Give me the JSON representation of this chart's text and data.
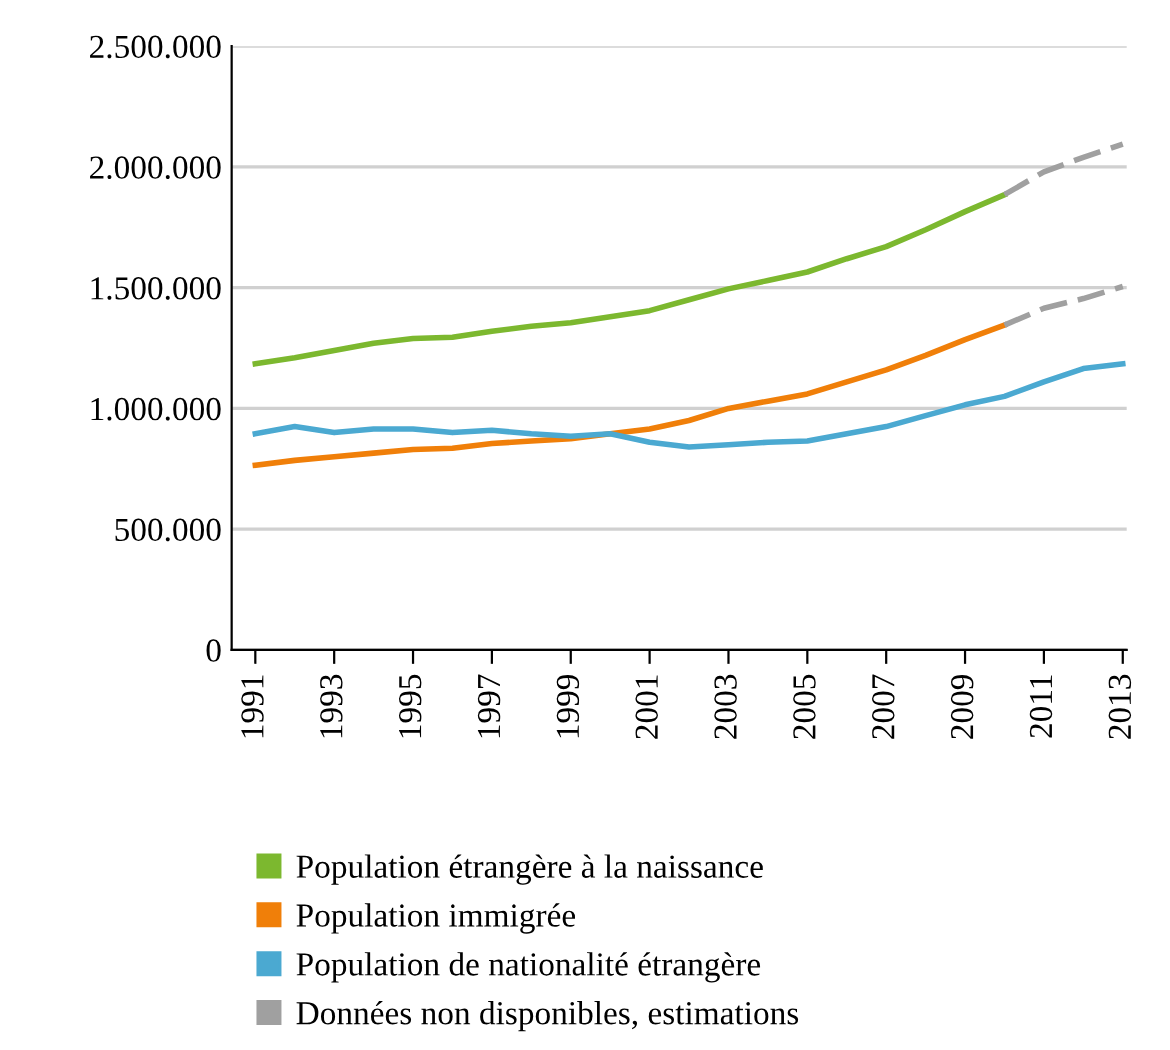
{
  "chart_data": {
    "type": "line",
    "xlim": [
      1990.4,
      2013.1
    ],
    "xticks": [
      1991,
      1993,
      1995,
      1997,
      1999,
      2001,
      2003,
      2005,
      2007,
      2009,
      2011,
      2013
    ],
    "ylim": [
      0,
      2500000
    ],
    "yticks": [
      {
        "value": 0,
        "label": "0"
      },
      {
        "value": 500000,
        "label": "500.000"
      },
      {
        "value": 1000000,
        "label": "1.000.000"
      },
      {
        "value": 1500000,
        "label": "1.500.000"
      },
      {
        "value": 2000000,
        "label": "2.000.000"
      },
      {
        "value": 2500000,
        "label": "2.500.000"
      }
    ],
    "grid": "y",
    "legend": "bottom",
    "marker": "none",
    "series": [
      {
        "name": "Population étrangère à la naissance",
        "color": "#7cb82f",
        "line_style": "solid",
        "x": [
          1991,
          1992,
          1993,
          1994,
          1995,
          1996,
          1997,
          1998,
          1999,
          2000,
          2001,
          2002,
          2003,
          2004,
          2005,
          2006,
          2007,
          2008,
          2009,
          2010
        ],
        "values": [
          1185000,
          1210000,
          1240000,
          1270000,
          1290000,
          1295000,
          1320000,
          1340000,
          1355000,
          1380000,
          1405000,
          1450000,
          1495000,
          1530000,
          1565000,
          1620000,
          1670000,
          1740000,
          1815000,
          1885000
        ]
      },
      {
        "name": "Population immigrée",
        "color": "#f07f09",
        "line_style": "solid",
        "x": [
          1991,
          1992,
          1993,
          1994,
          1995,
          1996,
          1997,
          1998,
          1999,
          2000,
          2001,
          2002,
          2003,
          2004,
          2005,
          2006,
          2007,
          2008,
          2009,
          2010
        ],
        "values": [
          765000,
          785000,
          800000,
          815000,
          830000,
          835000,
          855000,
          865000,
          875000,
          895000,
          915000,
          950000,
          1000000,
          1030000,
          1060000,
          1110000,
          1160000,
          1220000,
          1285000,
          1345000
        ]
      },
      {
        "name": "Population de nationalité étrangère",
        "color": "#4ba9d1",
        "line_style": "solid",
        "x": [
          1991,
          1992,
          1993,
          1994,
          1995,
          1996,
          1997,
          1998,
          1999,
          2000,
          2001,
          2002,
          2003,
          2004,
          2005,
          2006,
          2007,
          2008,
          2009,
          2010,
          2011,
          2012,
          2013
        ],
        "values": [
          895000,
          925000,
          900000,
          915000,
          915000,
          900000,
          910000,
          895000,
          885000,
          895000,
          860000,
          840000,
          850000,
          860000,
          865000,
          895000,
          925000,
          970000,
          1015000,
          1050000,
          1110000,
          1165000,
          1185000
        ]
      },
      {
        "name": "Données non disponibles, estimations",
        "color": "#a0a0a0",
        "line_style": "dashed",
        "x": [
          2010,
          2011,
          2012,
          2013
        ],
        "values": [
          1885000,
          1980000,
          2040000,
          2095000
        ]
      },
      {
        "color": "#a0a0a0",
        "line_style": "dashed",
        "x": [
          2010,
          2011,
          2012,
          2013
        ],
        "values": [
          1345000,
          1415000,
          1455000,
          1505000
        ]
      }
    ]
  }
}
